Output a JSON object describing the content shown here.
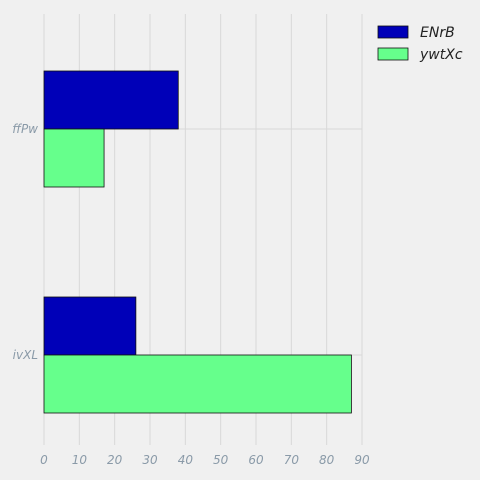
{
  "chart_data": {
    "type": "bar",
    "orientation": "horizontal",
    "categories": [
      "ffPw",
      "ivXL"
    ],
    "series": [
      {
        "name": "ENrB",
        "values": [
          38,
          26
        ],
        "color": "#0000b8"
      },
      {
        "name": "ywtXc",
        "values": [
          17,
          87
        ],
        "color": "#66ff8c"
      }
    ],
    "xlim": [
      0,
      90
    ],
    "xticks": [
      "0",
      "10",
      "20",
      "30",
      "40",
      "50",
      "60",
      "70",
      "80",
      "90"
    ],
    "grid": true,
    "legend_position": "top-right"
  }
}
